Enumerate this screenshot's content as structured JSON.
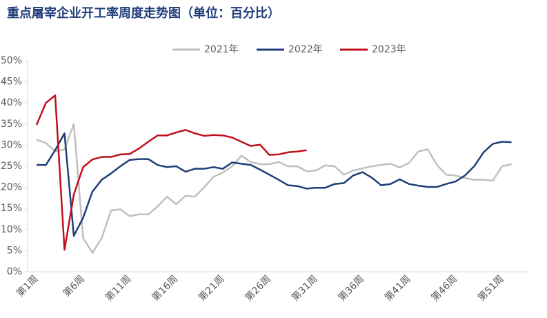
{
  "chart_data": {
    "type": "line",
    "title": "重点屠宰企业开工率周度走势图（单位：百分比）",
    "categories": [
      "第1周",
      null,
      null,
      null,
      null,
      "第6周",
      null,
      null,
      null,
      null,
      "第11周",
      null,
      null,
      null,
      null,
      "第16周",
      null,
      null,
      null,
      null,
      "第21周",
      null,
      null,
      null,
      null,
      "第26周",
      null,
      null,
      null,
      null,
      "第31周",
      null,
      null,
      null,
      null,
      "第36周",
      null,
      null,
      null,
      null,
      "第41周",
      null,
      null,
      null,
      null,
      "第46周",
      null,
      null,
      null,
      null,
      "第51周",
      null
    ],
    "series": [
      {
        "name": "2021年",
        "color": "#bfbfbf",
        "values": [
          31.3,
          30.5,
          28.5,
          29,
          35,
          8,
          4.5,
          8,
          14.5,
          14.8,
          13.2,
          13.6,
          13.6,
          15.5,
          17.8,
          16,
          18,
          17.8,
          20,
          22.5,
          23.5,
          25,
          27.5,
          26,
          25.5,
          25.5,
          26,
          25,
          25,
          23.8,
          24,
          25.2,
          25,
          23,
          24,
          24.5,
          25,
          25.3,
          25.6,
          24.7,
          25.8,
          28.5,
          29,
          25.3,
          23,
          22.8,
          22.2,
          21.8,
          21.8,
          21.6,
          25,
          25.5
        ]
      },
      {
        "name": "2022年",
        "color": "#1f3d7a",
        "values": [
          25.3,
          25.3,
          28.8,
          32.8,
          8.5,
          12.8,
          19,
          21.8,
          23.3,
          25,
          26.5,
          26.7,
          26.7,
          25.3,
          24.8,
          25,
          23.7,
          24.4,
          24.4,
          24.8,
          24.4,
          25.9,
          25.6,
          25.3,
          24.2,
          23,
          21.8,
          20.5,
          20.3,
          19.7,
          19.9,
          19.9,
          20.8,
          21,
          22.8,
          23.6,
          22.3,
          20.5,
          20.8,
          21.9,
          20.8,
          20.4,
          20.1,
          20.1,
          20.8,
          21.4,
          22.8,
          25,
          28.3,
          30.3,
          30.8,
          30.7
        ]
      },
      {
        "name": "2023年",
        "color": "#c0101a",
        "values": [
          34.8,
          40,
          41.8,
          5.2,
          18.3,
          24.8,
          26.6,
          27.2,
          27.2,
          27.8,
          27.9,
          29.2,
          30.8,
          32.3,
          32.3,
          33,
          33.6,
          32.8,
          32.2,
          32.4,
          32.3,
          31.8,
          30.8,
          29.8,
          30.1,
          27.7,
          27.8,
          28.3,
          28.5,
          28.8,
          null,
          null,
          null,
          null,
          null,
          null,
          null,
          null,
          null,
          null,
          null,
          null,
          null,
          null,
          null,
          null,
          null,
          null,
          null,
          null,
          null,
          null
        ]
      }
    ],
    "ylim": [
      0,
      50
    ],
    "yticks": [
      {
        "value": 0,
        "label": "0%"
      },
      {
        "value": 5,
        "label": "5%"
      },
      {
        "value": 10,
        "label": "10%"
      },
      {
        "value": 15,
        "label": "15%"
      },
      {
        "value": 20,
        "label": "20%"
      },
      {
        "value": 25,
        "label": "25%"
      },
      {
        "value": 30,
        "label": "30%"
      },
      {
        "value": 35,
        "label": "35%"
      },
      {
        "value": 40,
        "label": "40%"
      },
      {
        "value": 45,
        "label": "45%"
      },
      {
        "value": 50,
        "label": "50%"
      }
    ]
  }
}
